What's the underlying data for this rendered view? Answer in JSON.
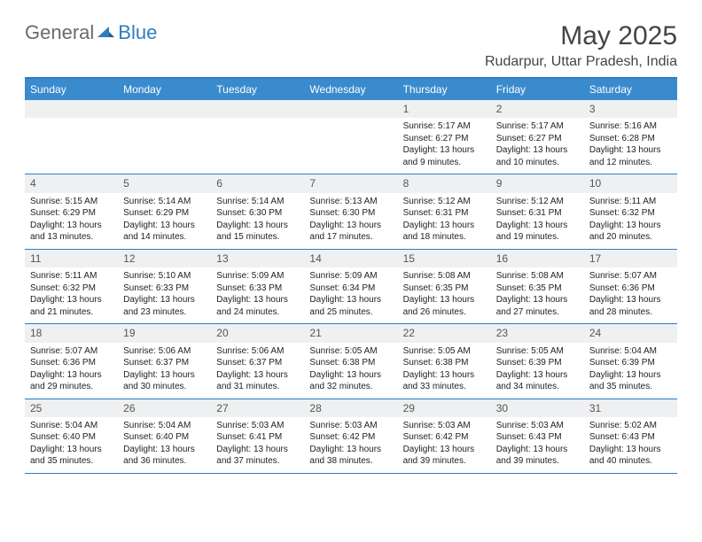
{
  "logo": {
    "gray": "General",
    "blue": "Blue"
  },
  "title": "May 2025",
  "location": "Rudarpur, Uttar Pradesh, India",
  "colors": {
    "header_bg": "#3a8bce",
    "border": "#2e7cc0",
    "daynum_bg": "#eef0f2",
    "text": "#333333"
  },
  "day_names": [
    "Sunday",
    "Monday",
    "Tuesday",
    "Wednesday",
    "Thursday",
    "Friday",
    "Saturday"
  ],
  "weeks": [
    [
      null,
      null,
      null,
      null,
      {
        "n": "1",
        "sr": "5:17 AM",
        "ss": "6:27 PM",
        "dl": "13 hours and 9 minutes."
      },
      {
        "n": "2",
        "sr": "5:17 AM",
        "ss": "6:27 PM",
        "dl": "13 hours and 10 minutes."
      },
      {
        "n": "3",
        "sr": "5:16 AM",
        "ss": "6:28 PM",
        "dl": "13 hours and 12 minutes."
      }
    ],
    [
      {
        "n": "4",
        "sr": "5:15 AM",
        "ss": "6:29 PM",
        "dl": "13 hours and 13 minutes."
      },
      {
        "n": "5",
        "sr": "5:14 AM",
        "ss": "6:29 PM",
        "dl": "13 hours and 14 minutes."
      },
      {
        "n": "6",
        "sr": "5:14 AM",
        "ss": "6:30 PM",
        "dl": "13 hours and 15 minutes."
      },
      {
        "n": "7",
        "sr": "5:13 AM",
        "ss": "6:30 PM",
        "dl": "13 hours and 17 minutes."
      },
      {
        "n": "8",
        "sr": "5:12 AM",
        "ss": "6:31 PM",
        "dl": "13 hours and 18 minutes."
      },
      {
        "n": "9",
        "sr": "5:12 AM",
        "ss": "6:31 PM",
        "dl": "13 hours and 19 minutes."
      },
      {
        "n": "10",
        "sr": "5:11 AM",
        "ss": "6:32 PM",
        "dl": "13 hours and 20 minutes."
      }
    ],
    [
      {
        "n": "11",
        "sr": "5:11 AM",
        "ss": "6:32 PM",
        "dl": "13 hours and 21 minutes."
      },
      {
        "n": "12",
        "sr": "5:10 AM",
        "ss": "6:33 PM",
        "dl": "13 hours and 23 minutes."
      },
      {
        "n": "13",
        "sr": "5:09 AM",
        "ss": "6:33 PM",
        "dl": "13 hours and 24 minutes."
      },
      {
        "n": "14",
        "sr": "5:09 AM",
        "ss": "6:34 PM",
        "dl": "13 hours and 25 minutes."
      },
      {
        "n": "15",
        "sr": "5:08 AM",
        "ss": "6:35 PM",
        "dl": "13 hours and 26 minutes."
      },
      {
        "n": "16",
        "sr": "5:08 AM",
        "ss": "6:35 PM",
        "dl": "13 hours and 27 minutes."
      },
      {
        "n": "17",
        "sr": "5:07 AM",
        "ss": "6:36 PM",
        "dl": "13 hours and 28 minutes."
      }
    ],
    [
      {
        "n": "18",
        "sr": "5:07 AM",
        "ss": "6:36 PM",
        "dl": "13 hours and 29 minutes."
      },
      {
        "n": "19",
        "sr": "5:06 AM",
        "ss": "6:37 PM",
        "dl": "13 hours and 30 minutes."
      },
      {
        "n": "20",
        "sr": "5:06 AM",
        "ss": "6:37 PM",
        "dl": "13 hours and 31 minutes."
      },
      {
        "n": "21",
        "sr": "5:05 AM",
        "ss": "6:38 PM",
        "dl": "13 hours and 32 minutes."
      },
      {
        "n": "22",
        "sr": "5:05 AM",
        "ss": "6:38 PM",
        "dl": "13 hours and 33 minutes."
      },
      {
        "n": "23",
        "sr": "5:05 AM",
        "ss": "6:39 PM",
        "dl": "13 hours and 34 minutes."
      },
      {
        "n": "24",
        "sr": "5:04 AM",
        "ss": "6:39 PM",
        "dl": "13 hours and 35 minutes."
      }
    ],
    [
      {
        "n": "25",
        "sr": "5:04 AM",
        "ss": "6:40 PM",
        "dl": "13 hours and 35 minutes."
      },
      {
        "n": "26",
        "sr": "5:04 AM",
        "ss": "6:40 PM",
        "dl": "13 hours and 36 minutes."
      },
      {
        "n": "27",
        "sr": "5:03 AM",
        "ss": "6:41 PM",
        "dl": "13 hours and 37 minutes."
      },
      {
        "n": "28",
        "sr": "5:03 AM",
        "ss": "6:42 PM",
        "dl": "13 hours and 38 minutes."
      },
      {
        "n": "29",
        "sr": "5:03 AM",
        "ss": "6:42 PM",
        "dl": "13 hours and 39 minutes."
      },
      {
        "n": "30",
        "sr": "5:03 AM",
        "ss": "6:43 PM",
        "dl": "13 hours and 39 minutes."
      },
      {
        "n": "31",
        "sr": "5:02 AM",
        "ss": "6:43 PM",
        "dl": "13 hours and 40 minutes."
      }
    ]
  ],
  "labels": {
    "sunrise": "Sunrise:",
    "sunset": "Sunset:",
    "daylight": "Daylight:"
  }
}
